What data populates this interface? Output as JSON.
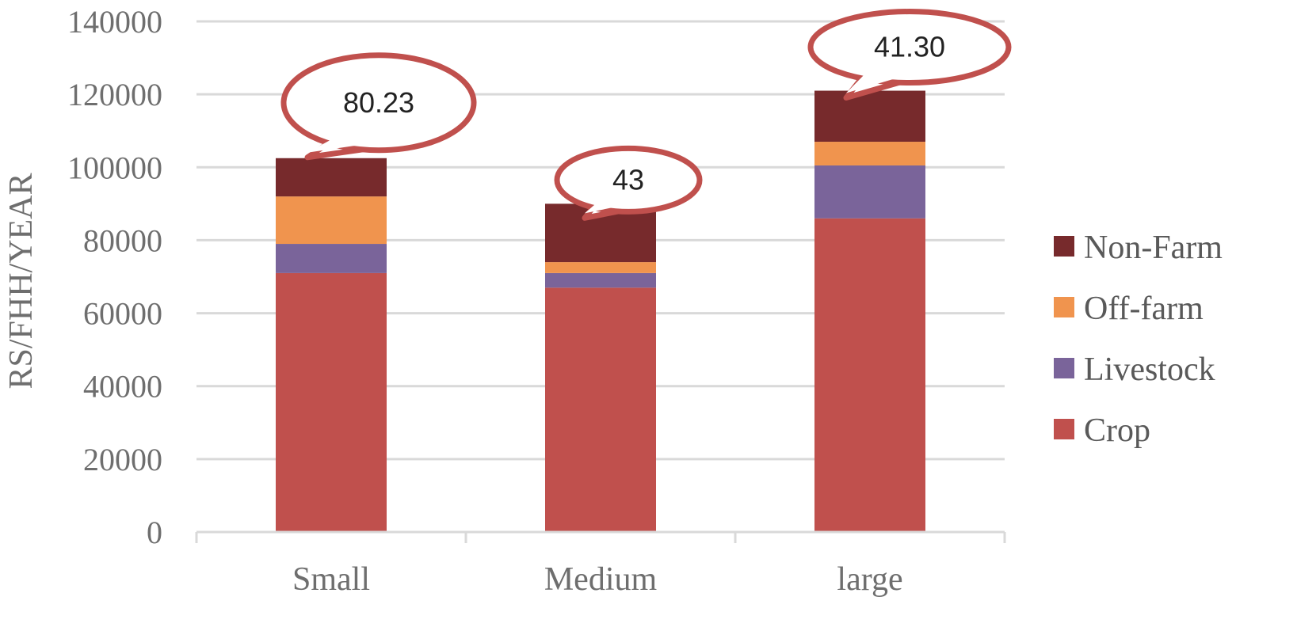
{
  "chart_data": {
    "type": "bar",
    "stacked": true,
    "title": "",
    "xlabel": "",
    "ylabel": "RS/FHH/YEAR",
    "ylim": [
      0,
      140000
    ],
    "yticks": [
      0,
      20000,
      40000,
      60000,
      80000,
      100000,
      120000,
      140000
    ],
    "ytick_labels": [
      "0",
      "20000",
      "40000",
      "60000",
      "80000",
      "100000",
      "120000",
      "140000"
    ],
    "grid": true,
    "legend_position": "right",
    "categories": [
      "Small",
      "Medium",
      "large"
    ],
    "series": [
      {
        "name": "Crop",
        "color": "#c0504d",
        "values": [
          71000,
          67000,
          86000
        ]
      },
      {
        "name": "Livestock",
        "color": "#7a649a",
        "values": [
          8000,
          4000,
          14500
        ]
      },
      {
        "name": "Off-farm",
        "color": "#f0944e",
        "values": [
          13000,
          3000,
          6500
        ]
      },
      {
        "name": "Non-Farm",
        "color": "#772a2c",
        "values": [
          10500,
          16000,
          14000
        ]
      }
    ],
    "legend_order": [
      "Non-Farm",
      "Off-farm",
      "Livestock",
      "Crop"
    ],
    "callouts": [
      {
        "category": "Small",
        "label": "80.23"
      },
      {
        "category": "Medium",
        "label": "43"
      },
      {
        "category": "large",
        "label": "41.30"
      }
    ],
    "callout_style": {
      "stroke": "#c0504d",
      "fill": "#ffffff"
    },
    "gridline_color": "#d9d9d9",
    "axis_color": "#d9d9d9"
  }
}
